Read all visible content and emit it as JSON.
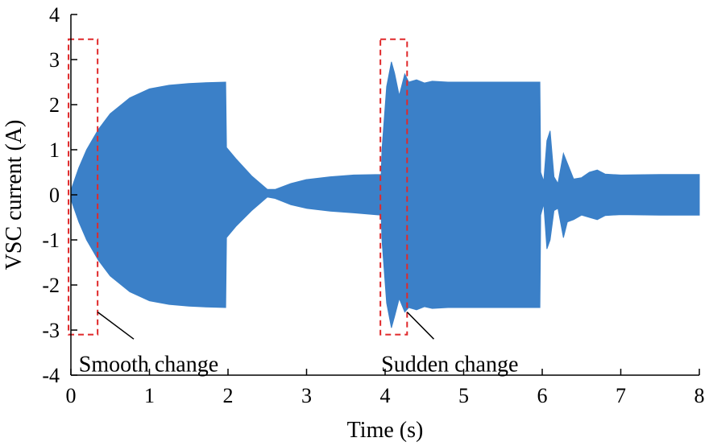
{
  "chart_data": {
    "type": "area",
    "xlabel": "Time (s)",
    "ylabel": "VSC current (A)",
    "xlim": [
      0,
      8
    ],
    "ylim": [
      -4,
      4
    ],
    "xticks": [
      "0",
      "1",
      "2",
      "3",
      "4",
      "5",
      "6",
      "7",
      "8"
    ],
    "yticks": [
      "4",
      "3",
      "2",
      "1",
      "0",
      "-1",
      "-2",
      "-3",
      "-4"
    ],
    "grid": false,
    "series_color": "#3b80c8",
    "envelope": {
      "x": [
        0.0,
        0.1,
        0.2,
        0.35,
        0.5,
        0.75,
        1.0,
        1.25,
        1.5,
        1.75,
        1.97,
        1.98,
        2.1,
        2.3,
        2.5,
        2.6,
        2.8,
        3.0,
        3.3,
        3.6,
        3.95,
        3.96,
        4.02,
        4.08,
        4.12,
        4.18,
        4.25,
        4.3,
        4.4,
        4.5,
        4.6,
        4.8,
        5.0,
        5.5,
        5.97,
        5.98,
        6.02,
        6.06,
        6.1,
        6.15,
        6.2,
        6.27,
        6.32,
        6.4,
        6.5,
        6.6,
        6.7,
        6.8,
        7.0,
        7.5,
        8.0
      ],
      "upper": [
        0.1,
        0.6,
        1.0,
        1.45,
        1.8,
        2.15,
        2.35,
        2.43,
        2.47,
        2.49,
        2.5,
        1.05,
        0.8,
        0.42,
        0.12,
        0.12,
        0.25,
        0.34,
        0.4,
        0.44,
        0.45,
        1.0,
        2.4,
        2.95,
        2.7,
        2.2,
        2.68,
        2.5,
        2.55,
        2.48,
        2.52,
        2.5,
        2.5,
        2.5,
        2.5,
        0.5,
        0.3,
        1.2,
        1.42,
        0.4,
        0.25,
        0.92,
        0.7,
        0.35,
        0.38,
        0.5,
        0.55,
        0.46,
        0.44,
        0.45,
        0.45
      ],
      "lower": [
        -0.1,
        -0.6,
        -1.0,
        -1.45,
        -1.8,
        -2.15,
        -2.35,
        -2.43,
        -2.47,
        -2.49,
        -2.5,
        -0.95,
        -0.7,
        -0.35,
        -0.05,
        -0.08,
        -0.22,
        -0.3,
        -0.36,
        -0.4,
        -0.45,
        -1.0,
        -2.4,
        -2.95,
        -2.7,
        -2.3,
        -2.6,
        -2.5,
        -2.55,
        -2.48,
        -2.52,
        -2.5,
        -2.5,
        -2.5,
        -2.5,
        -0.45,
        -0.2,
        -1.2,
        -1.0,
        -0.35,
        -0.3,
        -0.95,
        -0.6,
        -0.55,
        -0.45,
        -0.5,
        -0.55,
        -0.46,
        -0.44,
        -0.45,
        -0.45
      ]
    },
    "annotations": [
      {
        "label": "Smooth change",
        "box": {
          "x": [
            -0.03,
            0.34
          ],
          "y": [
            -3.1,
            3.45
          ]
        },
        "text_x": 0.1,
        "text_y": -3.6,
        "leader": {
          "from": [
            0.34,
            -2.6
          ],
          "to": [
            0.8,
            -3.2
          ]
        }
      },
      {
        "label": "Sudden change",
        "box": {
          "x": [
            3.94,
            4.28
          ],
          "y": [
            -3.1,
            3.45
          ]
        },
        "text_x": 3.95,
        "text_y": -3.6,
        "leader": {
          "from": [
            4.28,
            -2.6
          ],
          "to": [
            4.62,
            -3.2
          ]
        }
      }
    ],
    "annotation_color": "#e0282a"
  }
}
